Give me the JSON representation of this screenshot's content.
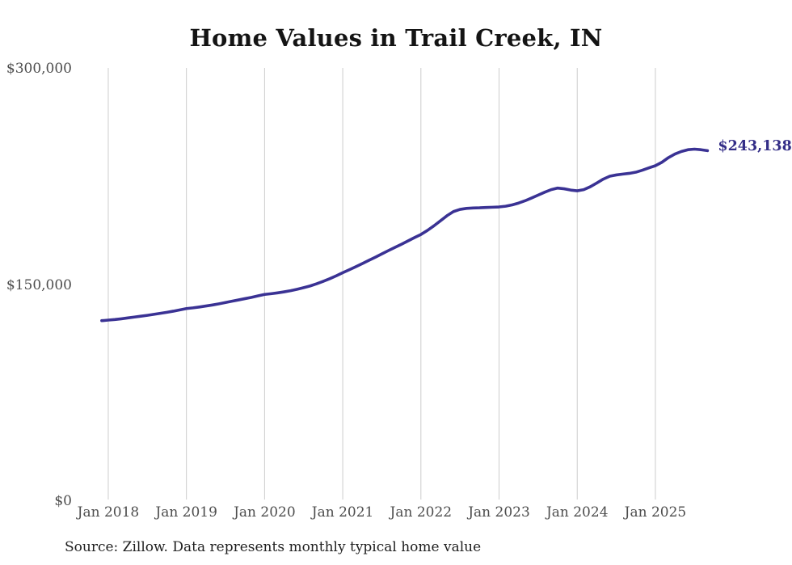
{
  "chart_data": {
    "type": "line",
    "title": "Home Values in Trail Creek, IN",
    "source_note": "Source: Zillow. Data represents monthly typical home value",
    "end_label": "$243,138",
    "final_value": 243138,
    "ylim": [
      0,
      300000
    ],
    "grid": "vertical-only",
    "legend_position": "none",
    "y_ticks": [
      {
        "label": "$300,000",
        "value": 300000
      },
      {
        "label": "$150,000",
        "value": 150000
      },
      {
        "label": "$0",
        "value": 0
      }
    ],
    "x_ticks": [
      "Jan 2018",
      "Jan 2019",
      "Jan 2020",
      "Jan 2021",
      "Jan 2022",
      "Jan 2023",
      "Jan 2024",
      "Jan 2025"
    ],
    "months": [
      "Dec 2017",
      "Jan 2018",
      "Feb 2018",
      "Mar 2018",
      "Apr 2018",
      "May 2018",
      "Jun 2018",
      "Jul 2018",
      "Aug 2018",
      "Sep 2018",
      "Oct 2018",
      "Nov 2018",
      "Dec 2018",
      "Jan 2019",
      "Feb 2019",
      "Mar 2019",
      "Apr 2019",
      "May 2019",
      "Jun 2019",
      "Jul 2019",
      "Aug 2019",
      "Sep 2019",
      "Oct 2019",
      "Nov 2019",
      "Dec 2019",
      "Jan 2020",
      "Feb 2020",
      "Mar 2020",
      "Apr 2020",
      "May 2020",
      "Jun 2020",
      "Jul 2020",
      "Aug 2020",
      "Sep 2020",
      "Oct 2020",
      "Nov 2020",
      "Dec 2020",
      "Jan 2021",
      "Feb 2021",
      "Mar 2021",
      "Apr 2021",
      "May 2021",
      "Jun 2021",
      "Jul 2021",
      "Aug 2021",
      "Sep 2021",
      "Oct 2021",
      "Nov 2021",
      "Dec 2021",
      "Jan 2022",
      "Feb 2022",
      "Mar 2022",
      "Apr 2022",
      "May 2022",
      "Jun 2022",
      "Jul 2022",
      "Aug 2022",
      "Sep 2022",
      "Oct 2022",
      "Nov 2022",
      "Dec 2022",
      "Jan 2023",
      "Feb 2023",
      "Mar 2023",
      "Apr 2023",
      "May 2023",
      "Jun 2023",
      "Jul 2023",
      "Aug 2023",
      "Sep 2023",
      "Oct 2023",
      "Nov 2023",
      "Dec 2023",
      "Jan 2024",
      "Feb 2024",
      "Mar 2024",
      "Apr 2024",
      "May 2024",
      "Jun 2024",
      "Jul 2024",
      "Aug 2024",
      "Sep 2024",
      "Oct 2024",
      "Nov 2024",
      "Dec 2024",
      "Jan 2025",
      "Feb 2025",
      "Mar 2025",
      "Apr 2025",
      "May 2025",
      "Jun 2025",
      "Jul 2025",
      "Aug 2025",
      "Sep 2025"
    ],
    "values": [
      125200,
      125600,
      126000,
      126500,
      127100,
      127700,
      128300,
      128900,
      129600,
      130300,
      131000,
      131800,
      132700,
      133600,
      134100,
      134700,
      135400,
      136100,
      136900,
      137800,
      138700,
      139600,
      140500,
      141400,
      142400,
      143400,
      143900,
      144500,
      145200,
      146000,
      147000,
      148100,
      149300,
      150800,
      152500,
      154300,
      156300,
      158500,
      160500,
      162600,
      164800,
      167000,
      169200,
      171500,
      173800,
      176000,
      178200,
      180500,
      182800,
      185000,
      187800,
      191000,
      194500,
      198000,
      200900,
      202400,
      203100,
      203400,
      203500,
      203700,
      203900,
      204100,
      204600,
      205500,
      206800,
      208400,
      210300,
      212300,
      214300,
      216100,
      217200,
      216700,
      215800,
      215300,
      216100,
      218100,
      220700,
      223400,
      225400,
      226300,
      226900,
      227400,
      228200,
      229600,
      231200,
      232700,
      235100,
      238300,
      240800,
      242600,
      243800,
      244200,
      243800,
      243138
    ],
    "colors": {
      "line": "#3a3294",
      "end_label": "#332d87",
      "grid": "#cccccc",
      "axis_text": "#4d4d4d",
      "title_text": "#141414",
      "source_text": "#1f1f1f"
    }
  }
}
